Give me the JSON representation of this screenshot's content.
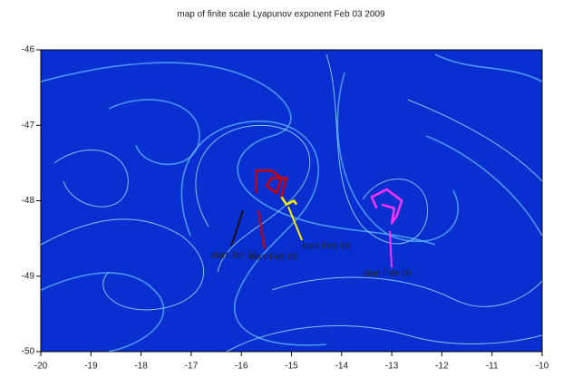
{
  "chart_data": {
    "type": "trajectory-map",
    "title": "map of finite scale Lyapunov exponent Feb 03 2009",
    "xlim": [
      -20,
      -10
    ],
    "xticks": [
      -20,
      -19,
      -18,
      -17,
      -16,
      -15,
      -14,
      -13,
      -12,
      -11,
      -10
    ],
    "ylim": [
      -50,
      -46
    ],
    "yticks": [
      -50,
      -49,
      -48,
      -47,
      -46
    ],
    "series": [
      {
        "color": "#cc0000",
        "x": [
          -15.7,
          -15.7,
          -15.4,
          -15.2,
          -15.3,
          -15.5,
          -15.4,
          -15.1,
          -15.2
        ],
        "y": [
          -47.9,
          -47.6,
          -47.6,
          -47.7,
          -47.9,
          -47.8,
          -47.7,
          -47.7,
          -47.95
        ]
      },
      {
        "color": "#ffee00",
        "x": [
          -15.2,
          -15.1,
          -14.95,
          -14.9
        ],
        "y": [
          -47.95,
          -48.05,
          -48.0,
          -48.05
        ]
      },
      {
        "color": "#ff33ff",
        "x": [
          -13.3,
          -13.4,
          -13.1,
          -12.8,
          -12.9,
          -13.0,
          -12.95,
          -13.2
        ],
        "y": [
          -48.1,
          -47.95,
          -47.85,
          -48.0,
          -48.2,
          -48.3,
          -48.1,
          -48.05
        ]
      }
    ],
    "annotations": [
      {
        "text": "start Jan 30",
        "color": "#111111"
      },
      {
        "text": "start Feb 02",
        "color": "#cc0000"
      },
      {
        "text": "start Feb 09",
        "color": "#ffee00"
      },
      {
        "text": "start Feb 10",
        "color": "#ff33ff"
      }
    ]
  }
}
